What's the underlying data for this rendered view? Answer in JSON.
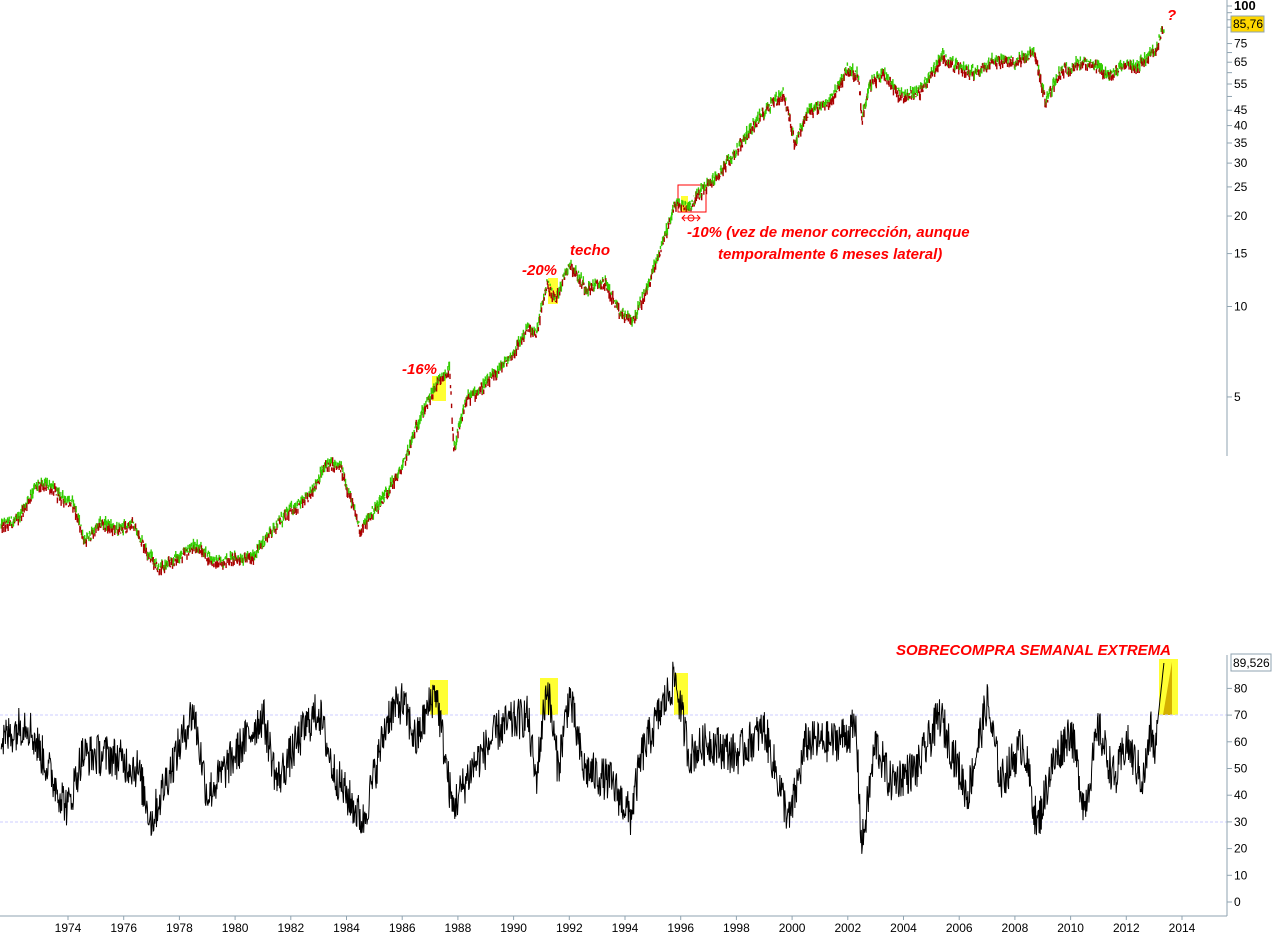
{
  "chart_data": [
    {
      "type": "candlestick-log",
      "title": "",
      "ylabel": "",
      "yscale": "log",
      "ylim": [
        1.2,
        100
      ],
      "yticks": [
        "100",
        "75",
        "65",
        "55",
        "45",
        "40",
        "35",
        "30",
        "25",
        "20",
        "15",
        "10",
        "5"
      ],
      "ytick_values": [
        100,
        75,
        65,
        55,
        45,
        40,
        35,
        30,
        25,
        20,
        15,
        10,
        5
      ],
      "last_value_label": "85,76",
      "last_value": 85.76,
      "up_color": "#33cc00",
      "down_color": "#aa0000",
      "price_anchors": [
        [
          1971.6,
          1.85
        ],
        [
          1972.2,
          1.95
        ],
        [
          1972.8,
          2.5
        ],
        [
          1973.3,
          2.55
        ],
        [
          1973.8,
          2.3
        ],
        [
          1974.2,
          2.2
        ],
        [
          1974.6,
          1.65
        ],
        [
          1975.2,
          1.9
        ],
        [
          1975.8,
          1.8
        ],
        [
          1976.3,
          1.9
        ],
        [
          1976.9,
          1.5
        ],
        [
          1977.3,
          1.33
        ],
        [
          1977.9,
          1.45
        ],
        [
          1978.6,
          1.6
        ],
        [
          1979.3,
          1.4
        ],
        [
          1979.9,
          1.45
        ],
        [
          1980.6,
          1.45
        ],
        [
          1981.3,
          1.8
        ],
        [
          1982,
          2.1
        ],
        [
          1982.6,
          2.3
        ],
        [
          1983.3,
          3.0
        ],
        [
          1983.8,
          2.9
        ],
        [
          1984.5,
          1.8
        ],
        [
          1985.3,
          2.3
        ],
        [
          1986,
          2.9
        ],
        [
          1986.6,
          4.2
        ],
        [
          1987.2,
          5.4
        ],
        [
          1987.7,
          6.2
        ],
        [
          1987.85,
          3.3
        ],
        [
          1988.3,
          4.9
        ],
        [
          1989,
          5.5
        ],
        [
          1990,
          7.0
        ],
        [
          1990.5,
          8.5
        ],
        [
          1990.8,
          8.0
        ],
        [
          1991.2,
          12.0
        ],
        [
          1991.5,
          10.5
        ],
        [
          1992,
          14.0
        ],
        [
          1992.6,
          11.5
        ],
        [
          1993.3,
          12.0
        ],
        [
          1993.8,
          9.5
        ],
        [
          1994.3,
          9.0
        ],
        [
          1994.8,
          11.5
        ],
        [
          1995.5,
          18.0
        ],
        [
          1995.8,
          22.0
        ],
        [
          1996.3,
          21.5
        ],
        [
          1996.7,
          24.0
        ],
        [
          1997.3,
          27.0
        ],
        [
          1998,
          33.0
        ],
        [
          1998.6,
          40.0
        ],
        [
          1999.3,
          48.0
        ],
        [
          1999.7,
          51.0
        ],
        [
          2000.1,
          35.0
        ],
        [
          2000.6,
          45.0
        ],
        [
          2001.3,
          47.0
        ],
        [
          2002,
          62.0
        ],
        [
          2002.4,
          58.0
        ],
        [
          2002.5,
          42.0
        ],
        [
          2002.8,
          55.0
        ],
        [
          2003.3,
          60.0
        ],
        [
          2003.9,
          50.0
        ],
        [
          2004.6,
          52.0
        ],
        [
          2005.4,
          68.0
        ],
        [
          2006,
          62.0
        ],
        [
          2006.6,
          60.0
        ],
        [
          2007.2,
          66.0
        ],
        [
          2008,
          65.0
        ],
        [
          2008.7,
          70.0
        ],
        [
          2009.1,
          48.0
        ],
        [
          2009.6,
          60.0
        ],
        [
          2010.4,
          65.0
        ],
        [
          2011,
          62.0
        ],
        [
          2011.5,
          58.0
        ],
        [
          2011.8,
          64.0
        ],
        [
          2012.4,
          63.0
        ],
        [
          2012.8,
          68.0
        ],
        [
          2013.1,
          72.0
        ],
        [
          2013.35,
          85.76
        ]
      ]
    },
    {
      "type": "line",
      "title": "",
      "ylim": [
        0,
        90
      ],
      "yticks": [
        "80",
        "70",
        "60",
        "50",
        "40",
        "30",
        "20",
        "10",
        "0"
      ],
      "ytick_values": [
        80,
        70,
        60,
        50,
        40,
        30,
        20,
        10,
        0
      ],
      "reference_lines": [
        70,
        30
      ],
      "last_value_label": "89,526",
      "last_value": 89.526,
      "osc_anchors": [
        [
          1971.6,
          60
        ],
        [
          1972.5,
          68
        ],
        [
          1973.5,
          45
        ],
        [
          1974,
          35
        ],
        [
          1974.5,
          55
        ],
        [
          1975.5,
          55
        ],
        [
          1976.5,
          50
        ],
        [
          1977,
          30
        ],
        [
          1977.5,
          45
        ],
        [
          1978.5,
          72
        ],
        [
          1979,
          40
        ],
        [
          1980,
          55
        ],
        [
          1981,
          70
        ],
        [
          1981.5,
          45
        ],
        [
          1982.5,
          65
        ],
        [
          1983,
          72
        ],
        [
          1983.5,
          50
        ],
        [
          1984,
          40
        ],
        [
          1984.6,
          30
        ],
        [
          1985.5,
          70
        ],
        [
          1986,
          75
        ],
        [
          1986.5,
          60
        ],
        [
          1987.2,
          80
        ],
        [
          1987.8,
          35
        ],
        [
          1988.5,
          50
        ],
        [
          1989.5,
          65
        ],
        [
          1990.5,
          70
        ],
        [
          1990.8,
          45
        ],
        [
          1991.2,
          82
        ],
        [
          1991.6,
          50
        ],
        [
          1992,
          78
        ],
        [
          1992.5,
          50
        ],
        [
          1993.5,
          45
        ],
        [
          1994.2,
          32
        ],
        [
          1994.6,
          55
        ],
        [
          1995.3,
          72
        ],
        [
          1995.8,
          84
        ],
        [
          1996.3,
          55
        ],
        [
          1997,
          60
        ],
        [
          1998,
          55
        ],
        [
          1999,
          65
        ],
        [
          1999.9,
          30
        ],
        [
          2000.5,
          60
        ],
        [
          2001.5,
          60
        ],
        [
          2002.3,
          65
        ],
        [
          2002.5,
          20
        ],
        [
          2003,
          60
        ],
        [
          2003.5,
          45
        ],
        [
          2004.5,
          50
        ],
        [
          2005.3,
          70
        ],
        [
          2005.8,
          55
        ],
        [
          2006.3,
          40
        ],
        [
          2007,
          75
        ],
        [
          2007.5,
          45
        ],
        [
          2008.3,
          60
        ],
        [
          2008.8,
          28
        ],
        [
          2009.3,
          50
        ],
        [
          2010,
          65
        ],
        [
          2010.5,
          35
        ],
        [
          2011,
          65
        ],
        [
          2011.6,
          45
        ],
        [
          2012,
          60
        ],
        [
          2012.6,
          45
        ],
        [
          2012.9,
          65
        ],
        [
          2013.0,
          55
        ],
        [
          2013.35,
          89.5
        ]
      ]
    }
  ],
  "xaxis": {
    "ticks": [
      "1974",
      "1976",
      "1978",
      "1980",
      "1982",
      "1984",
      "1986",
      "1988",
      "1990",
      "1992",
      "1994",
      "1996",
      "1998",
      "2000",
      "2002",
      "2004",
      "2006",
      "2008",
      "2010",
      "2012",
      "2014"
    ],
    "tick_values": [
      1974,
      1976,
      1978,
      1980,
      1982,
      1984,
      1986,
      1988,
      1990,
      1992,
      1994,
      1996,
      1998,
      2000,
      2002,
      2004,
      2006,
      2008,
      2010,
      2012,
      2014
    ]
  },
  "annotations": {
    "corr_1987": "-16%",
    "corr_1991": "-20%",
    "techo": "techo",
    "corr_1996_line1": "-10% (vez de menor corrección, aunque",
    "corr_1996_line2": "temporalmente 6 meses lateral)",
    "question": "?",
    "osc_title": "SOBRECOMPRA SEMANAL EXTREMA"
  },
  "colors": {
    "highlight": "#ffff33",
    "annotation": "#ff0000",
    "axis": "#8fa3b0",
    "refline": "#ccccff"
  }
}
